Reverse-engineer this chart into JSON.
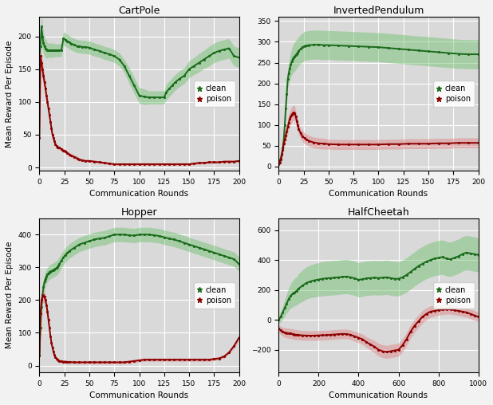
{
  "fig_background": "#f2f2f2",
  "subplot_background": "#d9d9d9",
  "green_color": "#1a6b1a",
  "green_fill": "#6abf6a",
  "red_color": "#8b0000",
  "red_fill": "#e08080",
  "subplots": [
    {
      "title": "CartPole",
      "xlabel": "Communication Rounds",
      "ylabel": "Mean Reward Per Episode",
      "xlim": [
        0,
        200
      ],
      "ylim": [
        -5,
        230
      ],
      "yticks": [
        0,
        50,
        100,
        150,
        200
      ],
      "xticks": [
        0,
        25,
        50,
        75,
        100,
        125,
        150,
        175,
        200
      ],
      "clean_x": [
        0,
        1,
        2,
        3,
        4,
        5,
        6,
        7,
        8,
        9,
        10,
        11,
        12,
        13,
        14,
        15,
        16,
        17,
        18,
        19,
        20,
        22,
        24,
        26,
        28,
        30,
        32,
        35,
        38,
        40,
        43,
        46,
        50,
        55,
        60,
        65,
        70,
        75,
        80,
        85,
        90,
        95,
        100,
        105,
        110,
        115,
        120,
        125,
        127,
        130,
        133,
        136,
        140,
        145,
        150,
        155,
        160,
        165,
        170,
        175,
        180,
        185,
        190,
        195,
        200
      ],
      "clean_y": [
        170,
        185,
        215,
        200,
        190,
        185,
        182,
        180,
        179,
        179,
        179,
        179,
        179,
        179,
        179,
        179,
        179,
        179,
        179,
        179,
        179,
        179,
        197,
        195,
        193,
        191,
        189,
        187,
        185,
        185,
        184,
        184,
        183,
        180,
        178,
        175,
        173,
        170,
        165,
        155,
        140,
        125,
        110,
        108,
        107,
        107,
        107,
        107,
        115,
        120,
        125,
        130,
        135,
        140,
        150,
        155,
        160,
        165,
        170,
        175,
        178,
        180,
        182,
        170,
        168
      ],
      "clean_std": [
        15,
        18,
        20,
        18,
        16,
        15,
        14,
        13,
        12,
        11,
        11,
        11,
        11,
        11,
        11,
        10,
        10,
        10,
        10,
        10,
        10,
        10,
        10,
        10,
        10,
        10,
        10,
        10,
        10,
        10,
        10,
        10,
        10,
        10,
        10,
        10,
        10,
        10,
        10,
        10,
        12,
        12,
        12,
        12,
        10,
        10,
        10,
        10,
        12,
        12,
        12,
        12,
        12,
        12,
        13,
        13,
        14,
        14,
        15,
        15,
        15,
        15,
        15,
        15,
        15
      ],
      "poison_x": [
        0,
        1,
        2,
        3,
        4,
        5,
        6,
        7,
        8,
        9,
        10,
        11,
        12,
        13,
        14,
        15,
        16,
        17,
        18,
        19,
        20,
        22,
        24,
        26,
        28,
        30,
        32,
        35,
        38,
        40,
        43,
        46,
        50,
        55,
        60,
        65,
        70,
        75,
        80,
        85,
        90,
        95,
        100,
        105,
        110,
        115,
        120,
        125,
        130,
        135,
        140,
        145,
        150,
        155,
        160,
        165,
        170,
        175,
        180,
        185,
        190,
        195,
        200
      ],
      "poison_y": [
        45,
        170,
        160,
        150,
        140,
        130,
        120,
        110,
        100,
        90,
        80,
        70,
        60,
        50,
        45,
        40,
        35,
        33,
        31,
        30,
        30,
        28,
        26,
        25,
        22,
        20,
        18,
        16,
        14,
        12,
        11,
        10,
        10,
        9,
        8,
        7,
        6,
        5,
        5,
        5,
        5,
        5,
        5,
        5,
        5,
        5,
        5,
        5,
        5,
        5,
        5,
        5,
        5,
        6,
        7,
        7,
        8,
        8,
        8,
        9,
        9,
        9,
        10
      ],
      "poison_std": [
        8,
        15,
        15,
        14,
        13,
        12,
        11,
        10,
        9,
        8,
        7,
        6,
        6,
        5,
        5,
        4,
        4,
        4,
        3,
        3,
        3,
        3,
        3,
        3,
        3,
        3,
        3,
        3,
        3,
        3,
        2,
        2,
        2,
        2,
        2,
        2,
        2,
        2,
        2,
        2,
        2,
        2,
        2,
        2,
        2,
        2,
        2,
        2,
        2,
        2,
        2,
        2,
        2,
        2,
        2,
        2,
        2,
        2,
        2,
        2,
        2,
        2,
        2
      ]
    },
    {
      "title": "InvertedPendulum",
      "xlabel": "Communication Rounds",
      "ylabel": "",
      "xlim": [
        0,
        200
      ],
      "ylim": [
        -10,
        360
      ],
      "yticks": [
        0,
        50,
        100,
        150,
        200,
        250,
        300,
        350
      ],
      "xticks": [
        0,
        25,
        50,
        75,
        100,
        125,
        150,
        175,
        200
      ],
      "clean_x": [
        0,
        1,
        2,
        3,
        4,
        5,
        6,
        7,
        8,
        9,
        10,
        11,
        12,
        13,
        14,
        15,
        16,
        17,
        18,
        19,
        20,
        22,
        24,
        26,
        28,
        30,
        35,
        40,
        45,
        50,
        60,
        70,
        80,
        90,
        100,
        110,
        120,
        130,
        140,
        150,
        160,
        170,
        180,
        190,
        200
      ],
      "clean_y": [
        10,
        15,
        20,
        30,
        45,
        65,
        100,
        140,
        175,
        210,
        225,
        235,
        245,
        252,
        258,
        262,
        265,
        268,
        271,
        274,
        278,
        283,
        287,
        290,
        291,
        292,
        293,
        293,
        292,
        292,
        291,
        290,
        289,
        288,
        287,
        285,
        283,
        281,
        279,
        277,
        275,
        273,
        271,
        270,
        270
      ],
      "clean_std": [
        5,
        6,
        7,
        8,
        10,
        12,
        15,
        18,
        20,
        22,
        25,
        28,
        30,
        32,
        33,
        34,
        35,
        35,
        35,
        35,
        35,
        35,
        35,
        35,
        35,
        35,
        35,
        35,
        35,
        35,
        35,
        35,
        35,
        35,
        35,
        35,
        35,
        35,
        35,
        35,
        35,
        35,
        35,
        35,
        35
      ],
      "poison_x": [
        0,
        1,
        2,
        3,
        4,
        5,
        6,
        7,
        8,
        9,
        10,
        11,
        12,
        13,
        14,
        15,
        16,
        17,
        18,
        19,
        20,
        22,
        24,
        26,
        28,
        30,
        35,
        40,
        45,
        50,
        60,
        70,
        80,
        90,
        100,
        110,
        120,
        130,
        140,
        150,
        160,
        170,
        180,
        190,
        200
      ],
      "poison_y": [
        5,
        10,
        18,
        28,
        40,
        55,
        65,
        75,
        85,
        95,
        105,
        115,
        120,
        125,
        128,
        130,
        128,
        120,
        110,
        100,
        90,
        80,
        72,
        68,
        65,
        62,
        58,
        56,
        55,
        54,
        53,
        53,
        53,
        53,
        53,
        54,
        54,
        55,
        55,
        55,
        56,
        56,
        57,
        57,
        57
      ],
      "poison_std": [
        5,
        6,
        8,
        10,
        12,
        14,
        15,
        16,
        17,
        18,
        18,
        18,
        18,
        18,
        18,
        18,
        17,
        16,
        15,
        14,
        14,
        13,
        13,
        13,
        13,
        13,
        13,
        13,
        13,
        12,
        12,
        12,
        12,
        12,
        12,
        12,
        12,
        12,
        12,
        12,
        12,
        12,
        12,
        12,
        12
      ]
    },
    {
      "title": "Hopper",
      "xlabel": "Communication Rounds",
      "ylabel": "Mean Reward Per Episode",
      "xlim": [
        0,
        200
      ],
      "ylim": [
        -20,
        450
      ],
      "yticks": [
        0,
        100,
        200,
        300,
        400
      ],
      "xticks": [
        0,
        25,
        50,
        75,
        100,
        125,
        150,
        175,
        200
      ],
      "clean_x": [
        0,
        1,
        2,
        3,
        4,
        5,
        6,
        7,
        8,
        9,
        10,
        11,
        12,
        13,
        14,
        15,
        16,
        17,
        18,
        19,
        20,
        22,
        24,
        26,
        28,
        30,
        35,
        40,
        45,
        50,
        55,
        60,
        65,
        70,
        75,
        80,
        85,
        90,
        95,
        100,
        105,
        110,
        115,
        120,
        125,
        130,
        135,
        140,
        145,
        150,
        155,
        160,
        165,
        170,
        175,
        180,
        185,
        190,
        195,
        200
      ],
      "clean_y": [
        30,
        115,
        180,
        215,
        240,
        256,
        265,
        272,
        278,
        282,
        285,
        287,
        289,
        290,
        292,
        294,
        296,
        298,
        300,
        305,
        310,
        320,
        330,
        338,
        344,
        350,
        360,
        370,
        375,
        380,
        385,
        388,
        390,
        395,
        400,
        400,
        400,
        398,
        397,
        400,
        400,
        400,
        398,
        396,
        392,
        388,
        385,
        380,
        375,
        370,
        365,
        360,
        355,
        350,
        345,
        340,
        335,
        330,
        325,
        310
      ],
      "clean_std": [
        15,
        18,
        20,
        22,
        22,
        22,
        22,
        22,
        22,
        22,
        22,
        22,
        22,
        22,
        22,
        22,
        22,
        22,
        22,
        22,
        22,
        22,
        22,
        22,
        22,
        22,
        22,
        22,
        22,
        22,
        22,
        22,
        22,
        22,
        22,
        22,
        22,
        22,
        22,
        22,
        22,
        22,
        22,
        22,
        22,
        22,
        22,
        22,
        22,
        22,
        22,
        22,
        22,
        22,
        22,
        22,
        22,
        22,
        22,
        22
      ],
      "poison_x": [
        0,
        1,
        2,
        3,
        4,
        5,
        6,
        7,
        8,
        9,
        10,
        11,
        12,
        13,
        14,
        15,
        16,
        17,
        18,
        19,
        20,
        22,
        24,
        26,
        28,
        30,
        35,
        40,
        45,
        50,
        55,
        60,
        65,
        70,
        75,
        80,
        85,
        90,
        95,
        100,
        105,
        110,
        115,
        120,
        125,
        130,
        135,
        140,
        145,
        150,
        155,
        160,
        165,
        170,
        175,
        180,
        185,
        190,
        195,
        200
      ],
      "poison_y": [
        30,
        160,
        200,
        210,
        215,
        210,
        200,
        185,
        165,
        140,
        115,
        90,
        70,
        55,
        42,
        32,
        25,
        22,
        18,
        15,
        14,
        13,
        12,
        12,
        11,
        11,
        10,
        10,
        10,
        10,
        10,
        10,
        10,
        10,
        10,
        10,
        10,
        12,
        14,
        16,
        18,
        18,
        18,
        18,
        18,
        18,
        18,
        18,
        18,
        18,
        18,
        18,
        18,
        18,
        20,
        22,
        28,
        40,
        60,
        85
      ],
      "poison_std": [
        15,
        20,
        22,
        22,
        22,
        20,
        18,
        16,
        14,
        12,
        10,
        8,
        7,
        6,
        5,
        5,
        5,
        5,
        5,
        5,
        5,
        5,
        5,
        5,
        5,
        5,
        5,
        5,
        5,
        5,
        5,
        5,
        5,
        5,
        5,
        5,
        5,
        5,
        5,
        5,
        5,
        5,
        5,
        5,
        5,
        5,
        5,
        5,
        5,
        5,
        5,
        5,
        5,
        5,
        5,
        5,
        5,
        5,
        7,
        10
      ]
    },
    {
      "title": "HalfCheetah",
      "xlabel": "Communication Rounds",
      "ylabel": "",
      "xlim": [
        0,
        1000
      ],
      "ylim": [
        -350,
        680
      ],
      "yticks": [
        -200,
        0,
        200,
        400,
        600
      ],
      "xticks": [
        0,
        200,
        400,
        600,
        800,
        1000
      ],
      "clean_x": [
        0,
        10,
        20,
        30,
        40,
        50,
        60,
        70,
        80,
        90,
        100,
        120,
        140,
        160,
        180,
        200,
        220,
        240,
        260,
        280,
        300,
        320,
        340,
        360,
        380,
        400,
        420,
        440,
        460,
        480,
        500,
        520,
        540,
        560,
        580,
        600,
        620,
        640,
        660,
        680,
        700,
        720,
        740,
        760,
        780,
        800,
        820,
        840,
        860,
        880,
        900,
        920,
        940,
        960,
        980,
        1000
      ],
      "clean_y": [
        0,
        20,
        50,
        80,
        110,
        140,
        160,
        175,
        185,
        195,
        210,
        230,
        248,
        258,
        265,
        270,
        275,
        278,
        280,
        282,
        285,
        288,
        290,
        285,
        278,
        268,
        272,
        278,
        280,
        282,
        280,
        282,
        285,
        280,
        275,
        275,
        285,
        300,
        320,
        340,
        360,
        375,
        390,
        400,
        410,
        415,
        420,
        410,
        405,
        415,
        425,
        440,
        450,
        445,
        440,
        435
      ],
      "clean_std": [
        25,
        35,
        45,
        55,
        65,
        75,
        82,
        88,
        92,
        95,
        100,
        105,
        108,
        110,
        112,
        113,
        115,
        115,
        115,
        115,
        115,
        115,
        115,
        115,
        115,
        115,
        115,
        115,
        115,
        115,
        115,
        115,
        115,
        115,
        115,
        115,
        115,
        115,
        115,
        115,
        115,
        115,
        115,
        115,
        115,
        115,
        115,
        115,
        115,
        115,
        115,
        115,
        115,
        115,
        115,
        115
      ],
      "poison_x": [
        0,
        10,
        20,
        30,
        40,
        50,
        60,
        70,
        80,
        90,
        100,
        120,
        140,
        160,
        180,
        200,
        220,
        240,
        260,
        280,
        300,
        320,
        340,
        360,
        380,
        400,
        420,
        440,
        460,
        480,
        500,
        520,
        540,
        560,
        580,
        600,
        620,
        640,
        660,
        680,
        700,
        720,
        740,
        760,
        780,
        800,
        820,
        840,
        860,
        880,
        900,
        920,
        940,
        960,
        980,
        1000
      ],
      "poison_y": [
        -60,
        -70,
        -80,
        -85,
        -88,
        -90,
        -92,
        -95,
        -98,
        -100,
        -102,
        -104,
        -105,
        -106,
        -105,
        -104,
        -103,
        -102,
        -100,
        -98,
        -96,
        -94,
        -95,
        -100,
        -110,
        -120,
        -130,
        -150,
        -165,
        -180,
        -200,
        -210,
        -215,
        -210,
        -205,
        -200,
        -170,
        -130,
        -80,
        -40,
        -10,
        20,
        40,
        55,
        60,
        65,
        68,
        70,
        70,
        65,
        60,
        55,
        50,
        40,
        30,
        20
      ],
      "poison_std": [
        25,
        28,
        30,
        32,
        33,
        34,
        34,
        34,
        34,
        34,
        33,
        32,
        32,
        32,
        32,
        32,
        32,
        32,
        32,
        32,
        32,
        32,
        32,
        32,
        33,
        34,
        35,
        36,
        38,
        40,
        42,
        43,
        44,
        44,
        44,
        44,
        44,
        44,
        44,
        44,
        43,
        42,
        40,
        38,
        36,
        34,
        33,
        32,
        32,
        32,
        32,
        32,
        32,
        32,
        32,
        32
      ]
    }
  ]
}
